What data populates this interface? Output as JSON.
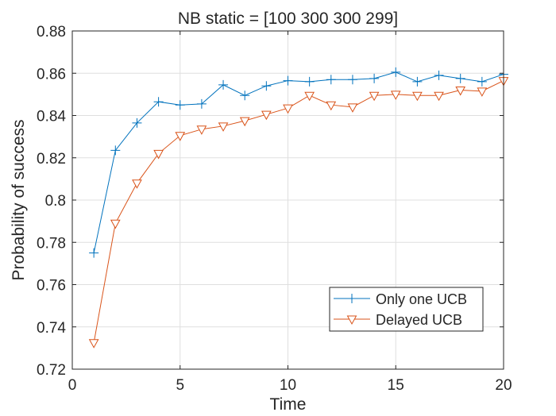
{
  "chart_data": {
    "type": "line",
    "title": "NB static = [100 300 300 299]",
    "xlabel": "Time",
    "ylabel": "Probability of success",
    "xlim": [
      0,
      20
    ],
    "ylim": [
      0.72,
      0.88
    ],
    "xticks": [
      0,
      5,
      10,
      15,
      20
    ],
    "xtick_labels": [
      "0",
      "5",
      "10",
      "15",
      "20"
    ],
    "yticks": [
      0.72,
      0.74,
      0.76,
      0.78,
      0.8,
      0.82,
      0.84,
      0.86,
      0.88
    ],
    "ytick_labels": [
      "0.72",
      "0.74",
      "0.76",
      "0.78",
      "0.8",
      "0.82",
      "0.84",
      "0.86",
      "0.88"
    ],
    "grid": true,
    "legend_position": "bottom-right",
    "x": [
      1,
      2,
      3,
      4,
      5,
      6,
      7,
      8,
      9,
      10,
      11,
      12,
      13,
      14,
      15,
      16,
      17,
      18,
      19,
      20
    ],
    "series": [
      {
        "name": "Only one UCB",
        "color": "#0072BD",
        "marker": "plus",
        "values": [
          0.775,
          0.8235,
          0.8365,
          0.8465,
          0.845,
          0.8455,
          0.8545,
          0.8495,
          0.854,
          0.8565,
          0.856,
          0.857,
          0.857,
          0.8575,
          0.8605,
          0.856,
          0.859,
          0.8575,
          0.856,
          0.8595
        ]
      },
      {
        "name": "Delayed UCB",
        "color": "#D95319",
        "marker": "triangle-down",
        "values": [
          0.7325,
          0.789,
          0.808,
          0.822,
          0.8305,
          0.8335,
          0.835,
          0.8375,
          0.8405,
          0.8435,
          0.8495,
          0.845,
          0.844,
          0.8495,
          0.85,
          0.8495,
          0.8495,
          0.852,
          0.8515,
          0.8565
        ]
      }
    ]
  }
}
